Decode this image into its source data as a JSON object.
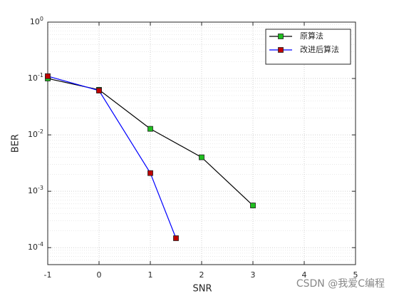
{
  "chart_data": {
    "type": "line",
    "x_label": "SNR",
    "y_label": "BER",
    "x": [
      -1,
      0,
      1,
      2,
      3
    ],
    "series": [
      {
        "name": "原算法",
        "color": "#000000",
        "marker_color": "#1fbf1f",
        "x": [
          -1,
          0,
          1,
          2,
          3
        ],
        "values": [
          0.1,
          0.063,
          0.0128,
          0.004,
          0.00056
        ]
      },
      {
        "name": "改进后算法",
        "color": "#0000ff",
        "marker_color": "#c00000",
        "x": [
          -1,
          0,
          1,
          1.5
        ],
        "values": [
          0.11,
          0.061,
          0.0021,
          0.000147
        ]
      }
    ],
    "xlim": [
      -1,
      5
    ],
    "xticks": [
      -1,
      0,
      1,
      2,
      3,
      4,
      5
    ],
    "ylim": [
      5e-05,
      1
    ],
    "y_scale": "log",
    "yticks": [
      {
        "value": 0.0001,
        "label": "10^-4"
      },
      {
        "value": 0.001,
        "label": "10^-3"
      },
      {
        "value": 0.01,
        "label": "10^-2"
      },
      {
        "value": 0.1,
        "label": "10^-1"
      },
      {
        "value": 1,
        "label": "10^0"
      }
    ],
    "grid": true,
    "minor_grid": true,
    "legend_position": "upper right",
    "watermark": "CSDN @我爱C编程"
  }
}
